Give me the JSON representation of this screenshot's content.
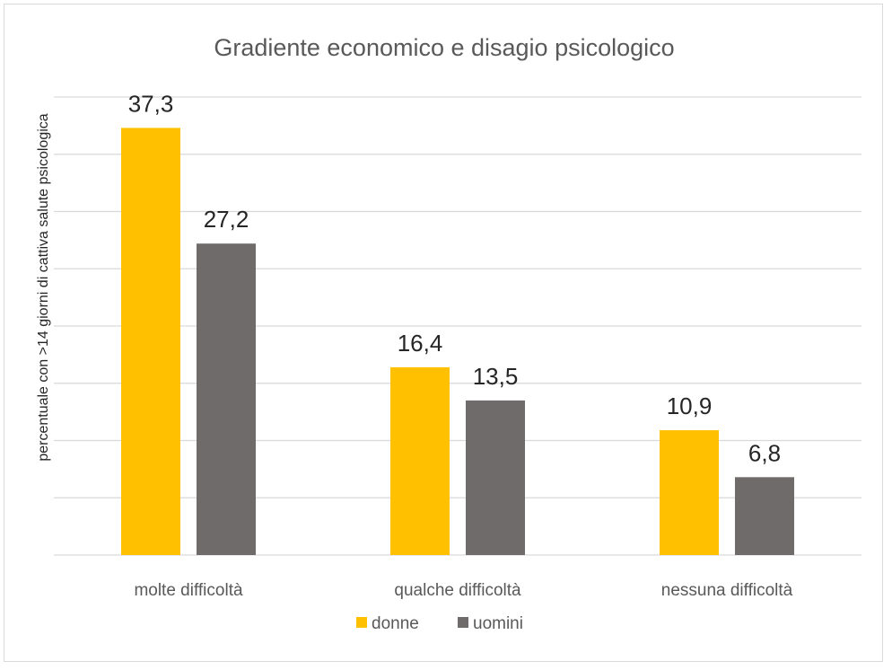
{
  "chart_data": {
    "type": "bar",
    "title": "Gradiente economico e disagio psicologico",
    "ylabel": "percentuale con >14 giorni di cattiva salute psicologica",
    "xlabel": "",
    "categories": [
      "molte difficoltà",
      "qualche difficoltà",
      "nessuna difficoltà"
    ],
    "series": [
      {
        "name": "donne",
        "values": [
          37.3,
          16.4,
          10.9
        ],
        "labels": [
          "37,3",
          "16,4",
          "10,9"
        ],
        "color": "#FFC000"
      },
      {
        "name": "uomini",
        "values": [
          27.2,
          13.5,
          6.8
        ],
        "labels": [
          "27,2",
          "13,5",
          "6,8"
        ],
        "color": "#6E6B6A"
      }
    ],
    "ylim": [
      0,
      40
    ],
    "grid": true,
    "legend_position": "bottom"
  }
}
